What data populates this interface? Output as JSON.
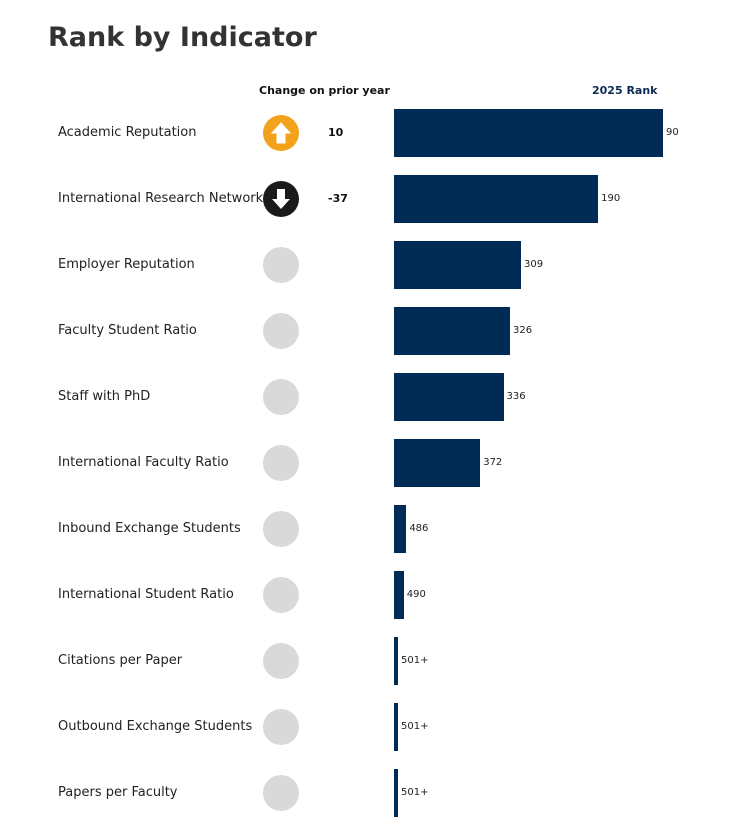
{
  "title": "Rank by Indicator",
  "headers": {
    "change": "Change on prior year",
    "rank": "2025 Rank"
  },
  "colors": {
    "bar": "#002b55",
    "up": "#f2a31b",
    "down": "#1a1a1a",
    "neutral": "#d9d9d9"
  },
  "chart_data": {
    "type": "bar",
    "orientation": "horizontal",
    "title": "Rank by Indicator",
    "categories": [
      "Academic Reputation",
      "International Research Network",
      "Employer Reputation",
      "Faculty Student Ratio",
      "Staff with PhD",
      "International Faculty Ratio",
      "Inbound Exchange Students",
      "International Student Ratio",
      "Citations per Paper",
      "Outbound Exchange Students",
      "Papers per Faculty"
    ],
    "series": [
      {
        "name": "2025 Rank",
        "values": [
          90,
          190,
          309,
          326,
          336,
          372,
          486,
          490,
          501,
          501,
          501
        ],
        "labels": [
          "90",
          "190",
          "309",
          "326",
          "336",
          "372",
          "486",
          "490",
          "501+",
          "501+",
          "501+"
        ]
      }
    ],
    "change": [
      {
        "direction": "up",
        "icon": "arrow-up-icon",
        "value": "10"
      },
      {
        "direction": "down",
        "icon": "arrow-down-icon",
        "value": "-37"
      },
      {
        "direction": "none",
        "icon": "empty-circle-icon",
        "value": ""
      },
      {
        "direction": "none",
        "icon": "empty-circle-icon",
        "value": ""
      },
      {
        "direction": "none",
        "icon": "empty-circle-icon",
        "value": ""
      },
      {
        "direction": "none",
        "icon": "empty-circle-icon",
        "value": ""
      },
      {
        "direction": "none",
        "icon": "empty-circle-icon",
        "value": ""
      },
      {
        "direction": "none",
        "icon": "empty-circle-icon",
        "value": ""
      },
      {
        "direction": "none",
        "icon": "empty-circle-icon",
        "value": ""
      },
      {
        "direction": "none",
        "icon": "empty-circle-icon",
        "value": ""
      },
      {
        "direction": "none",
        "icon": "empty-circle-icon",
        "value": ""
      }
    ],
    "grid": false,
    "legend": "none"
  }
}
